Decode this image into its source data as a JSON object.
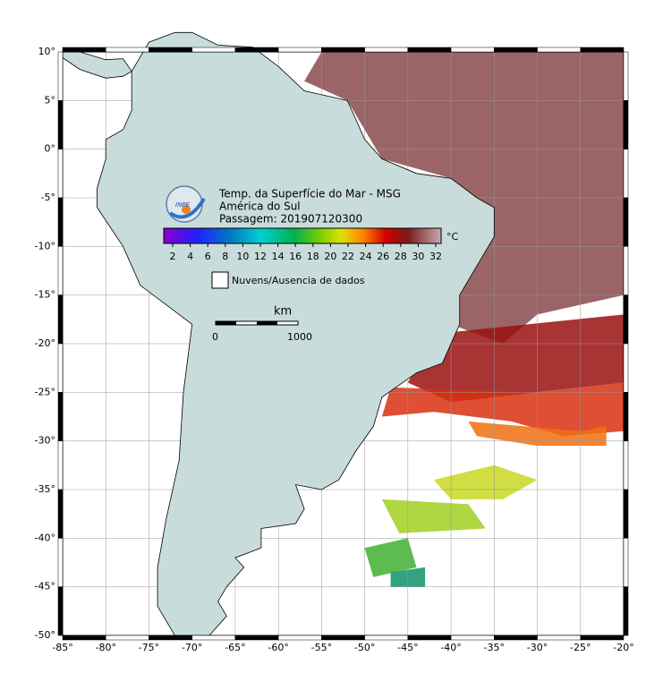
{
  "header": {
    "title": "Temp. da Superfície do Mar - MSG",
    "region": "América do Sul",
    "pass": "Passagem: 201907120300",
    "logo": "INPE"
  },
  "colorbar": {
    "labels": [
      "2",
      "4",
      "6",
      "8",
      "10",
      "12",
      "14",
      "16",
      "18",
      "20",
      "22",
      "24",
      "26",
      "28",
      "30",
      "32"
    ],
    "unit": "°C"
  },
  "legend": {
    "label": "Nuvens/Ausencia de dados"
  },
  "scale": {
    "unit": "km",
    "labels": [
      "0",
      "1000"
    ]
  },
  "axes": {
    "longitude": [
      "-85°",
      "-80°",
      "-75°",
      "-70°",
      "-65°",
      "-60°",
      "-55°",
      "-50°",
      "-45°",
      "-40°",
      "-35°",
      "-30°",
      "-25°",
      "-20°"
    ],
    "latitude": [
      "10°",
      "5°",
      "0°",
      "-5°",
      "-10°",
      "-15°",
      "-20°",
      "-25°",
      "-30°",
      "-35°",
      "-40°",
      "-45°",
      "-50°"
    ]
  }
}
